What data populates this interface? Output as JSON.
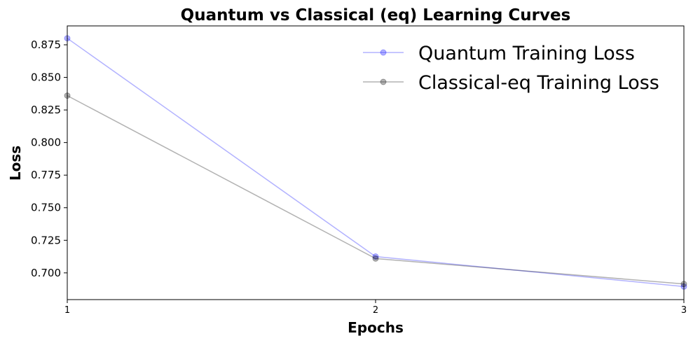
{
  "chart_data": {
    "type": "line",
    "title": "Quantum vs Classical (eq) Learning Curves",
    "xlabel": "Epochs",
    "ylabel": "Loss",
    "x": [
      1,
      2,
      3
    ],
    "x_ticks": [
      "1",
      "2",
      "3"
    ],
    "y_ticks": [
      "0.700",
      "0.725",
      "0.750",
      "0.775",
      "0.800",
      "0.825",
      "0.850",
      "0.875"
    ],
    "xlim": [
      1,
      3
    ],
    "ylim": [
      0.6795,
      0.8895
    ],
    "grid": false,
    "legend_position": "top-right",
    "series": [
      {
        "name": "Quantum Training Loss",
        "values": [
          0.88,
          0.7125,
          0.6895
        ],
        "color": "#0000ff",
        "alpha": 0.3
      },
      {
        "name": "Classical-eq Training Loss",
        "values": [
          0.836,
          0.711,
          0.6915
        ],
        "color": "#000000",
        "alpha": 0.3
      }
    ]
  }
}
